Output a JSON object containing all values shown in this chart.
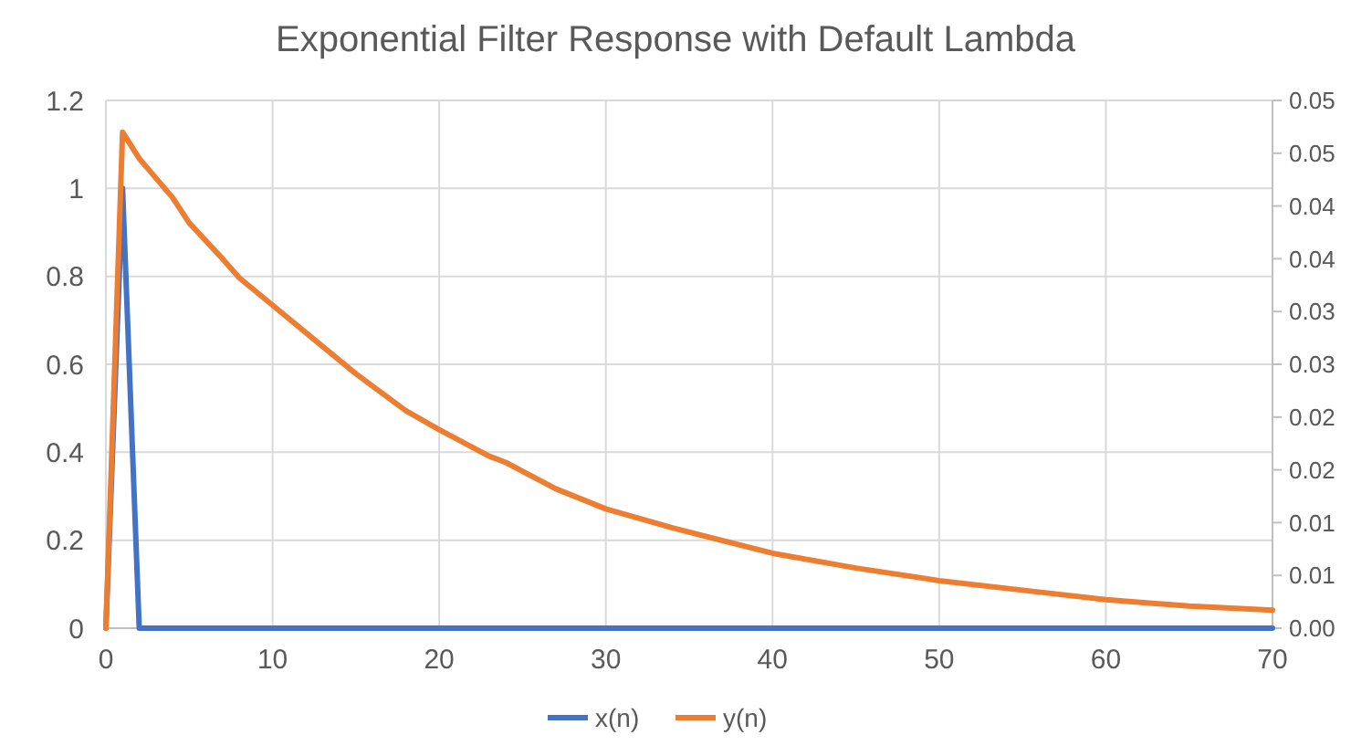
{
  "chart_data": {
    "type": "line",
    "title": "Exponential Filter Response with Default Lambda",
    "xlim": [
      0,
      70
    ],
    "xticks": [
      0,
      10,
      20,
      30,
      40,
      50,
      60,
      70
    ],
    "ylim": [
      0,
      1.2
    ],
    "yticks": [
      0,
      0.2,
      0.4,
      0.6,
      0.8,
      1,
      1.2
    ],
    "y2lim": [
      0,
      0.05
    ],
    "y2ticks": [
      {
        "value": 0,
        "label": "0.00"
      },
      {
        "value": 0.005,
        "label": "0.01"
      },
      {
        "value": 0.01,
        "label": "0.01"
      },
      {
        "value": 0.015,
        "label": "0.02"
      },
      {
        "value": 0.02,
        "label": "0.02"
      },
      {
        "value": 0.025,
        "label": "0.03"
      },
      {
        "value": 0.03,
        "label": "0.03"
      },
      {
        "value": 0.035,
        "label": "0.04"
      },
      {
        "value": 0.04,
        "label": "0.04"
      },
      {
        "value": 0.045,
        "label": "0.05"
      },
      {
        "value": 0.05,
        "label": "0.05"
      }
    ],
    "grid": true,
    "legend": "bottom",
    "marker": "none",
    "line_style": "solid",
    "series": [
      {
        "name": "x(n)",
        "color": "#4472c4",
        "x": [
          0,
          1,
          2,
          70
        ],
        "values": [
          0,
          1,
          0,
          0
        ]
      },
      {
        "name": "y(n)",
        "color": "#ed7d31",
        "axis": "y2",
        "x": [
          0,
          1,
          2,
          4,
          5,
          7,
          8,
          10,
          12,
          15,
          18,
          20,
          23,
          24,
          27,
          30,
          34,
          40,
          45,
          50,
          55,
          60,
          65,
          70
        ],
        "values": [
          0,
          0.047,
          0.0445,
          0.0408,
          0.0384,
          0.035,
          0.0332,
          0.0306,
          0.028,
          0.0241,
          0.0206,
          0.0188,
          0.0163,
          0.0157,
          0.0132,
          0.0113,
          0.0095,
          0.0071,
          0.0057,
          0.0045,
          0.0036,
          0.0027,
          0.0021,
          0.0017
        ]
      }
    ]
  }
}
